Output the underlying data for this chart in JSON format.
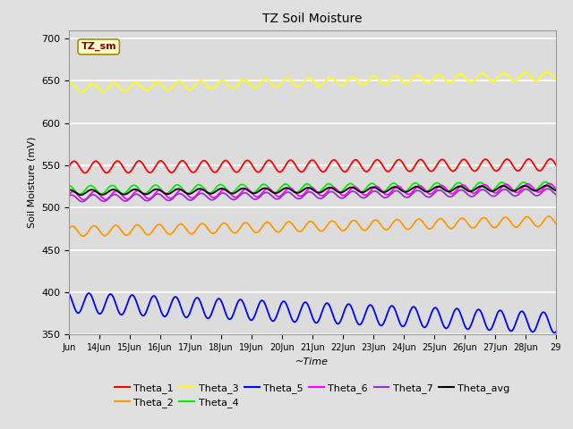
{
  "title": "TZ Soil Moisture",
  "xlabel": "~Time",
  "ylabel": "Soil Moisture (mV)",
  "ylim": [
    350,
    710
  ],
  "yticks": [
    350,
    400,
    450,
    500,
    550,
    600,
    650,
    700
  ],
  "x_start": 0,
  "x_end": 15,
  "n_points": 500,
  "background_color": "#e0e0e0",
  "axes_bg_color": "#dcdcdc",
  "plot_bg_color": "#dcdcdc",
  "legend_label": "TZ_sm",
  "legend_box_color": "#ffffcc",
  "legend_text_color": "#880000",
  "series": [
    {
      "name": "Theta_1",
      "color": "#ff0000",
      "base": 548,
      "amp": 7,
      "trend": 0.18,
      "freq": 1.5,
      "phase": 0.0
    },
    {
      "name": "Theta_2",
      "color": "#ff9900",
      "base": 472,
      "amp": 6,
      "trend": 0.8,
      "freq": 1.5,
      "phase": 0.5
    },
    {
      "name": "Theta_3",
      "color": "#ffff00",
      "base": 641,
      "amp": 5,
      "trend": 1.0,
      "freq": 1.5,
      "phase": 1.0
    },
    {
      "name": "Theta_4",
      "color": "#00ee00",
      "base": 521,
      "amp": 5,
      "trend": 0.3,
      "freq": 1.5,
      "phase": 1.5
    },
    {
      "name": "Theta_5",
      "color": "#0000ff",
      "base": 388,
      "amp": 12,
      "trend": -1.6,
      "freq": 1.5,
      "phase": 2.0
    },
    {
      "name": "Theta_6",
      "color": "#ff00ff",
      "base": 514,
      "amp": 5,
      "trend": 0.65,
      "freq": 1.5,
      "phase": 0.3
    },
    {
      "name": "Theta_7",
      "color": "#9933cc",
      "base": 511,
      "amp": 4,
      "trend": 0.5,
      "freq": 1.5,
      "phase": 0.8
    },
    {
      "name": "Theta_avg",
      "color": "#000000",
      "base": 518,
      "amp": 3,
      "trend": 0.35,
      "freq": 1.5,
      "phase": 1.2
    }
  ],
  "xtick_labels": [
    "Jun",
    "14Jun",
    "15Jun",
    "16Jun",
    "17Jun",
    "18Jun",
    "19Jun",
    "20Jun",
    "21Jun",
    "22Jun",
    "23Jun",
    "24Jun",
    "25Jun",
    "26Jun",
    "27Jun",
    "28Jun",
    "29"
  ],
  "xtick_positions": [
    0,
    0.9375,
    1.875,
    2.8125,
    3.75,
    4.6875,
    5.625,
    6.5625,
    7.5,
    8.4375,
    9.375,
    10.3125,
    11.25,
    12.1875,
    13.125,
    14.0625,
    15.0
  ]
}
